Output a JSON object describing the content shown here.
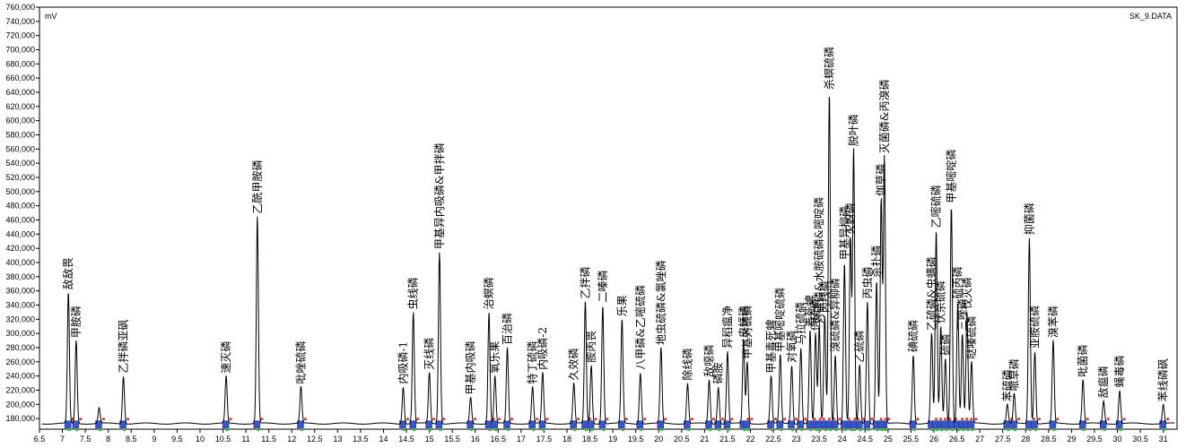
{
  "file_name": "SK_9.DATA",
  "unit_mark": "mV",
  "chart_data": {
    "type": "line",
    "xlim": [
      6.5,
      31.3
    ],
    "ylim": [
      165000,
      760000
    ],
    "x_ticks": [
      6.5,
      7,
      7.5,
      8,
      8.5,
      9,
      9.5,
      10,
      10.5,
      11,
      11.5,
      12,
      12.5,
      13,
      13.5,
      14,
      14.5,
      15,
      15.5,
      16,
      16.5,
      17,
      17.5,
      18,
      18.5,
      19,
      19.5,
      20,
      20.5,
      21,
      21.5,
      22,
      22.5,
      23,
      23.5,
      24,
      24.5,
      25,
      25.5,
      26,
      26.5,
      27,
      27.5,
      28,
      28.5,
      29,
      29.5,
      30,
      30.5,
      31
    ],
    "x_tick_labels": [
      "6.5",
      "7",
      "7.5",
      "8",
      "8.5",
      "9",
      "9.5",
      "10",
      "10.5",
      "11",
      "11.5",
      "12",
      "12.5",
      "13",
      "13.5",
      "14",
      "14.5",
      "15",
      "15.5",
      "16",
      "16.5",
      "17",
      "17.5",
      "18",
      "18.5",
      "19",
      "19.5",
      "20",
      "20.5",
      "21",
      "21.5",
      "22",
      "22.5",
      "23",
      "23.5",
      "24",
      "24.5",
      "25",
      "25.5",
      "26",
      "26.5",
      "27",
      "27.5",
      "28",
      "28.5",
      "29",
      "29.5",
      "30",
      "30.5",
      "31"
    ],
    "y_ticks": [
      180000,
      200000,
      220000,
      240000,
      260000,
      280000,
      300000,
      320000,
      340000,
      360000,
      380000,
      400000,
      420000,
      440000,
      460000,
      480000,
      500000,
      520000,
      540000,
      560000,
      580000,
      600000,
      620000,
      640000,
      660000,
      680000,
      700000,
      720000,
      740000,
      760000
    ],
    "y_tick_labels": [
      "180,000",
      "200,000",
      "220,000",
      "240,000",
      "260,000",
      "280,000",
      "300,000",
      "320,000",
      "340,000",
      "360,000",
      "380,000",
      "400,000",
      "420,000",
      "440,000",
      "460,000",
      "480,000",
      "500,000",
      "520,000",
      "540,000",
      "560,000",
      "580,000",
      "600,000",
      "620,000",
      "640,000",
      "660,000",
      "680,000",
      "700,000",
      "720,000",
      "740,000",
      "760,000"
    ],
    "baseline": 173000,
    "peaks": [
      {
        "x": 7.13,
        "y": 358000,
        "label": "敌敌畏"
      },
      {
        "x": 7.3,
        "y": 290000,
        "label": "甲胺磷"
      },
      {
        "x": 7.8,
        "y": 195000,
        "label": ""
      },
      {
        "x": 8.33,
        "y": 240000,
        "label": "乙拌磷亚砜"
      },
      {
        "x": 10.57,
        "y": 240000,
        "label": "速灭磷"
      },
      {
        "x": 11.25,
        "y": 465000,
        "label": "乙酰甲胺磷"
      },
      {
        "x": 12.2,
        "y": 225000,
        "label": "吡唑硫磷"
      },
      {
        "x": 14.43,
        "y": 225000,
        "label": "内吸磷-1"
      },
      {
        "x": 14.65,
        "y": 330000,
        "label": "虫线磷"
      },
      {
        "x": 15.0,
        "y": 245000,
        "label": "灭线磷"
      },
      {
        "x": 15.22,
        "y": 415000,
        "label": "甲基异内吸磷&甲拌磷"
      },
      {
        "x": 15.9,
        "y": 210000,
        "label": "甲基内吸磷"
      },
      {
        "x": 16.3,
        "y": 330000,
        "label": "治螟磷"
      },
      {
        "x": 16.43,
        "y": 240000,
        "label": "氧乐果"
      },
      {
        "x": 16.7,
        "y": 280000,
        "label": "百治磷"
      },
      {
        "x": 17.25,
        "y": 225000,
        "label": "特丁硫磷"
      },
      {
        "x": 17.47,
        "y": 245000,
        "label": "内吸磷-2"
      },
      {
        "x": 18.15,
        "y": 230000,
        "label": "久效磷"
      },
      {
        "x": 18.4,
        "y": 345000,
        "label": "乙拌磷"
      },
      {
        "x": 18.53,
        "y": 255000,
        "label": "胺丙畏"
      },
      {
        "x": 18.78,
        "y": 340000,
        "label": "二嗪磷"
      },
      {
        "x": 19.2,
        "y": 320000,
        "label": "乐果"
      },
      {
        "x": 19.6,
        "y": 245000,
        "label": "八甲磷&乙嘧硫磷"
      },
      {
        "x": 20.05,
        "y": 280000,
        "label": "地虫硫磷&氯唑磷"
      },
      {
        "x": 20.63,
        "y": 230000,
        "label": "除线磷"
      },
      {
        "x": 21.1,
        "y": 235000,
        "label": "敌噁磷"
      },
      {
        "x": 21.3,
        "y": 225000,
        "label": "磷胺"
      },
      {
        "x": 21.5,
        "y": 275000,
        "label": "异稻瘟净"
      },
      {
        "x": 21.85,
        "y": 290000,
        "label": "皮蝇磷"
      },
      {
        "x": 21.93,
        "y": 260000,
        "label": "甲基对硫磷"
      },
      {
        "x": 22.45,
        "y": 240000,
        "label": "甲基毒死蜱"
      },
      {
        "x": 22.65,
        "y": 270000,
        "label": "甲基嘧啶硫磷"
      },
      {
        "x": 22.9,
        "y": 255000,
        "label": "对氧磷"
      },
      {
        "x": 23.1,
        "y": 280000,
        "label": "马拉硫磷"
      },
      {
        "x": 23.3,
        "y": 305000,
        "label": "毒死蜱"
      },
      {
        "x": 23.42,
        "y": 300000,
        "label": "倍硫磷"
      },
      {
        "x": 23.5,
        "y": 310000,
        "label": "对硫磷&水胺硫磷&嘧啶磷"
      },
      {
        "x": 23.62,
        "y": 325000,
        "label": "丙线磷"
      },
      {
        "x": 23.72,
        "y": 640000,
        "label": "杀螟硫磷"
      },
      {
        "x": 23.85,
        "y": 270000,
        "label": "溴硫磷&异柳磷"
      },
      {
        "x": 24.05,
        "y": 400000,
        "label": "甲基异柳磷"
      },
      {
        "x": 24.18,
        "y": 435000,
        "label": "灭蚜磷"
      },
      {
        "x": 24.25,
        "y": 560000,
        "label": "脱叶磷"
      },
      {
        "x": 24.38,
        "y": 255000,
        "label": "乙硫磷"
      },
      {
        "x": 24.55,
        "y": 345000,
        "label": "丙虫磷"
      },
      {
        "x": 24.75,
        "y": 375000,
        "label": "杀扑磷"
      },
      {
        "x": 24.92,
        "y": 550000,
        "label": "灭菌磷&丙溴磷"
      },
      {
        "x": 24.85,
        "y": 490000,
        "label": "伽草磷"
      },
      {
        "x": 25.55,
        "y": 270000,
        "label": "碘硫磷"
      },
      {
        "x": 25.95,
        "y": 300000,
        "label": "乙硫磷&虫螨磷"
      },
      {
        "x": 26.05,
        "y": 445000,
        "label": "乙嘧硫磷"
      },
      {
        "x": 26.15,
        "y": 310000,
        "label": "伏杀硫磷"
      },
      {
        "x": 26.25,
        "y": 265000,
        "label": "硫磷"
      },
      {
        "x": 26.38,
        "y": 480000,
        "label": "甲基嘧啶磷"
      },
      {
        "x": 26.52,
        "y": 345000,
        "label": "硫丙磷"
      },
      {
        "x": 26.62,
        "y": 300000,
        "label": "三唑磷"
      },
      {
        "x": 26.72,
        "y": 330000,
        "label": "伐灭磷"
      },
      {
        "x": 26.82,
        "y": 260000,
        "label": "哒嗪硫磷"
      },
      {
        "x": 27.6,
        "y": 200000,
        "label": "苯硫磷"
      },
      {
        "x": 27.75,
        "y": 215000,
        "label": "哌草磷"
      },
      {
        "x": 28.08,
        "y": 435000,
        "label": "抑菌磷"
      },
      {
        "x": 28.2,
        "y": 275000,
        "label": "亚胺硫磷"
      },
      {
        "x": 28.6,
        "y": 290000,
        "label": "溴苯磷"
      },
      {
        "x": 29.25,
        "y": 235000,
        "label": "吡菌磷"
      },
      {
        "x": 29.7,
        "y": 205000,
        "label": "敌瘟磷"
      },
      {
        "x": 30.05,
        "y": 220000,
        "label": "蝇毒磷"
      },
      {
        "x": 31.0,
        "y": 200000,
        "label": "苯线磷砜"
      }
    ],
    "series": [
      {
        "label_positions": []
      }
    ]
  }
}
